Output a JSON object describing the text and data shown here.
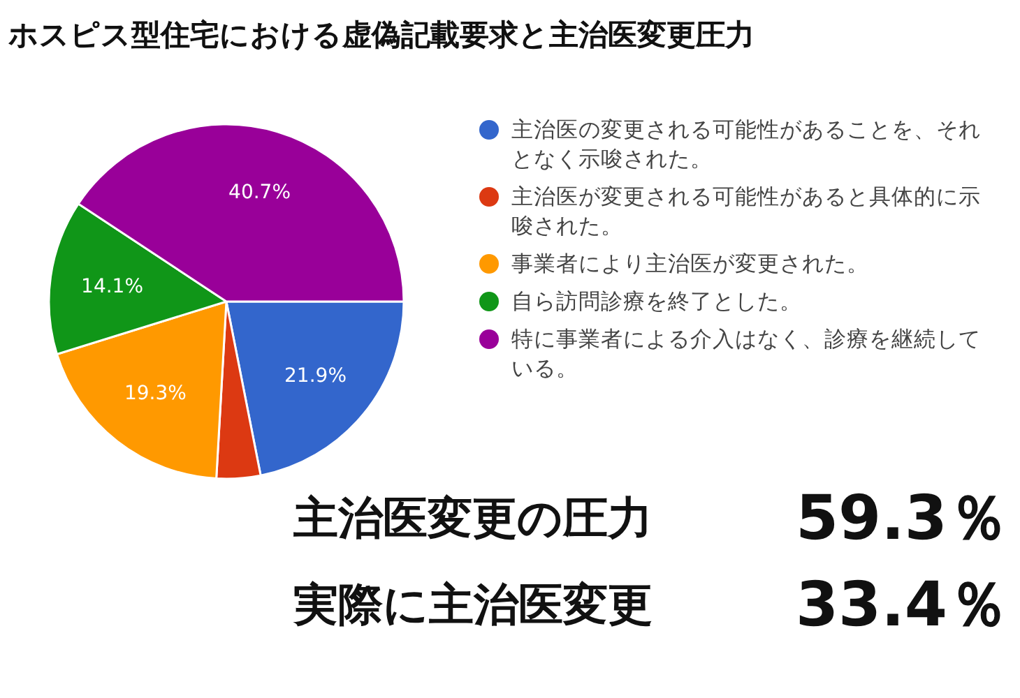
{
  "chart_data": {
    "type": "pie",
    "title": "ホスピス型住宅における虚偽記載要求と主治医変更圧力",
    "categories": [
      "主治医の変更される可能性があることを、それとなく示唆された。",
      "主治医が変更される可能性があると具体的に示唆された。",
      "事業者により主治医が変更された。",
      "自ら訪問診療を終了とした。",
      "特に事業者による介入はなく、診療を継続している。"
    ],
    "values": [
      21.9,
      4.0,
      19.3,
      14.1,
      40.7
    ],
    "colors": [
      "#3366cc",
      "#dc3912",
      "#ff9900",
      "#109618",
      "#990099"
    ],
    "value_labels": [
      "21.9%",
      null,
      "19.3%",
      "14.1%",
      "40.7%"
    ],
    "legend": "right",
    "annotations": [
      "主治医変更の圧力",
      "59.3％",
      "実際に主治医変更",
      "33.4％"
    ]
  }
}
